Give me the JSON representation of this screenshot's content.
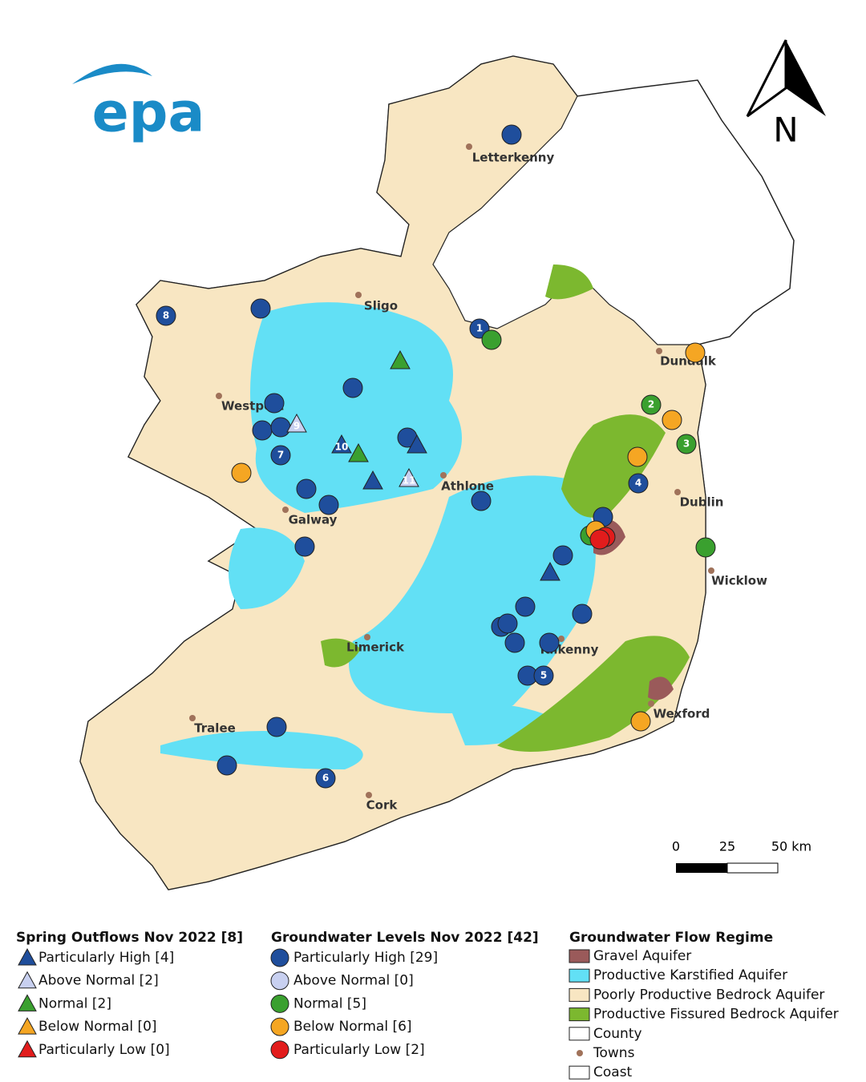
{
  "logo": "epa",
  "north": "N",
  "towns": [
    "Letterkenny",
    "Sligo",
    "Dundalk",
    "Westport",
    "Athlone",
    "Dublin",
    "Galway",
    "Wicklow",
    "Limerick",
    "Kilkenny",
    "Tralee",
    "Wexford",
    "Cork"
  ],
  "site_labels": [
    "1",
    "2",
    "3",
    "4",
    "5",
    "6",
    "7",
    "8",
    "9",
    "10",
    "11"
  ],
  "scale": [
    "0",
    "25",
    "50 km"
  ],
  "legend": {
    "spring": {
      "title": "Spring Outflows Nov 2022 [8]",
      "items": [
        "Particularly High [4]",
        "Above Normal [2]",
        "Normal [2]",
        "Below Normal [0]",
        "Particularly Low [0]"
      ]
    },
    "groundwater": {
      "title": "Groundwater Levels Nov 2022 [42]",
      "items": [
        "Particularly High [29]",
        "Above Normal [0]",
        "Normal [5]",
        "Below Normal [6]",
        "Particularly Low [2]"
      ]
    },
    "regime": {
      "title": "Groundwater Flow Regime",
      "items": [
        "Gravel Aquifer",
        "Productive Karstified Aquifer",
        "Poorly Productive Bedrock Aquifer",
        "Productive Fissured Bedrock Aquifer",
        "County",
        "Towns",
        "Coast"
      ]
    }
  }
}
